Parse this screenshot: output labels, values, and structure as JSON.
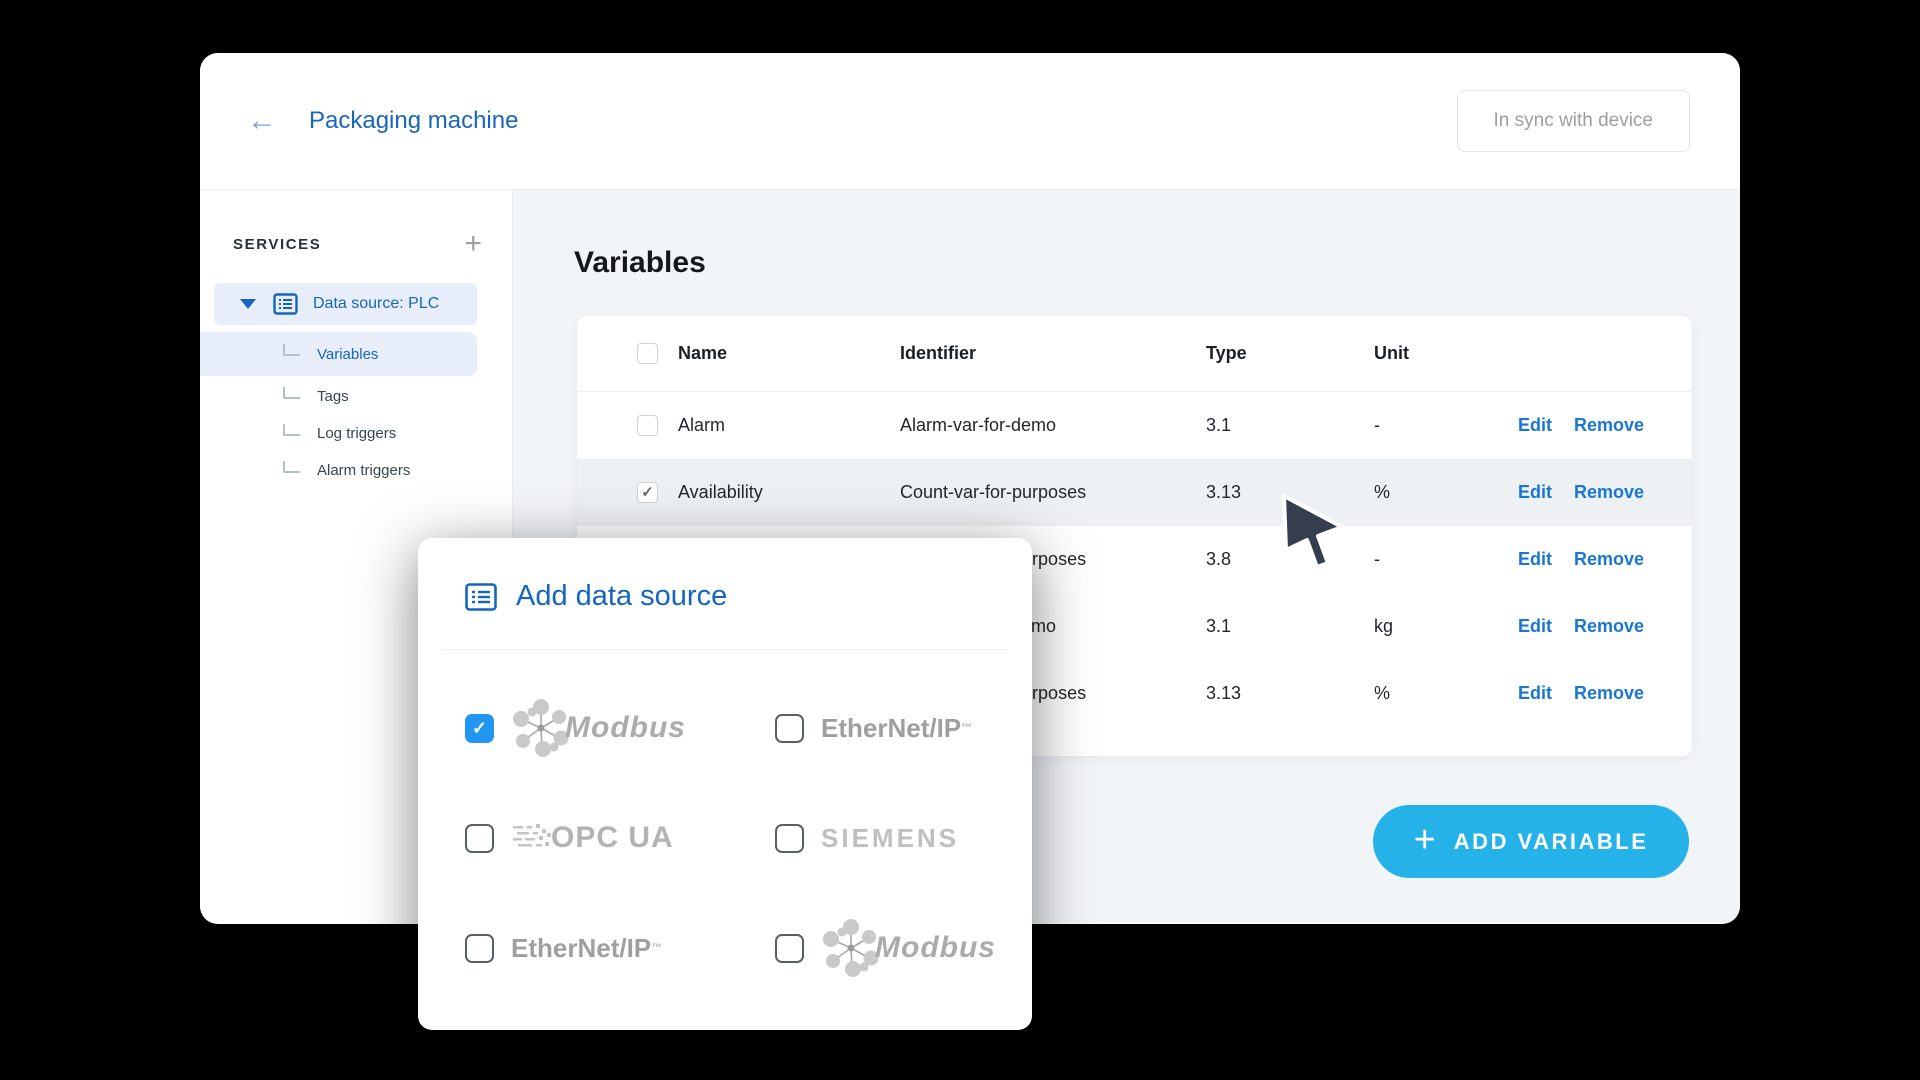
{
  "window": {
    "title": "Packaging machine",
    "sync_status": "In sync with device"
  },
  "icons": {
    "back": "←",
    "plus": "+",
    "check": "✓",
    "expand": "▼",
    "data_source": "list-icon"
  },
  "sidebar": {
    "header": "SERVICES",
    "root": {
      "label": "Data source: PLC",
      "expanded": true
    },
    "items": [
      {
        "label": "Variables",
        "selected": true
      },
      {
        "label": "Tags",
        "selected": false
      },
      {
        "label": "Log triggers",
        "selected": false
      },
      {
        "label": "Alarm triggers",
        "selected": false
      }
    ]
  },
  "main": {
    "title": "Variables",
    "table": {
      "columns": [
        "Name",
        "Identifier",
        "Type",
        "Unit"
      ],
      "actions": {
        "edit": "Edit",
        "remove": "Remove"
      },
      "rows": [
        {
          "name": "Alarm",
          "identifier": "Alarm-var-for-demo",
          "type": "3.1",
          "unit": "-",
          "checked": false,
          "highlighted": false
        },
        {
          "name": "Availability",
          "identifier": "Count-var-for-purposes",
          "type": "3.13",
          "unit": "%",
          "checked": true,
          "highlighted": true
        },
        {
          "name": "",
          "identifier": "Count-var-for-purposes",
          "type": "3.8",
          "unit": "-",
          "checked": false,
          "highlighted": false
        },
        {
          "name": "",
          "identifier": "Alarm-var-for-demo",
          "type": "3.1",
          "unit": "kg",
          "checked": false,
          "highlighted": false
        },
        {
          "name": "",
          "identifier": "Count-var-for-purposes",
          "type": "3.13",
          "unit": "%",
          "checked": false,
          "highlighted": false
        }
      ]
    },
    "add_variable_button": {
      "label": "ADD VARIABLE"
    }
  },
  "modal": {
    "title": "Add data source",
    "options": [
      {
        "name": "Modbus",
        "logo": "modbus",
        "checked": true,
        "tm": ""
      },
      {
        "name": "EtherNet/IP",
        "logo": "ethernet",
        "checked": false,
        "tm": "™"
      },
      {
        "name": "OPC UA",
        "logo": "opcua",
        "checked": false,
        "tm": ""
      },
      {
        "name": "SIEMENS",
        "logo": "siemens",
        "checked": false,
        "tm": ""
      },
      {
        "name": "EtherNet/IP",
        "logo": "ethernet",
        "checked": false,
        "tm": "™"
      },
      {
        "name": "Modbus",
        "logo": "modbus",
        "checked": false,
        "tm": ""
      }
    ]
  },
  "colors": {
    "accent_blue": "#1867b8",
    "link_blue": "#1976d2",
    "checkbox_blue": "#2196f3",
    "add_button_cyan": "#25b2e8",
    "content_bg": "#f2f5f7",
    "row_highlight": "#edf1f4",
    "tree_highlight": "#e7eef9",
    "page_bg": "#000000"
  }
}
